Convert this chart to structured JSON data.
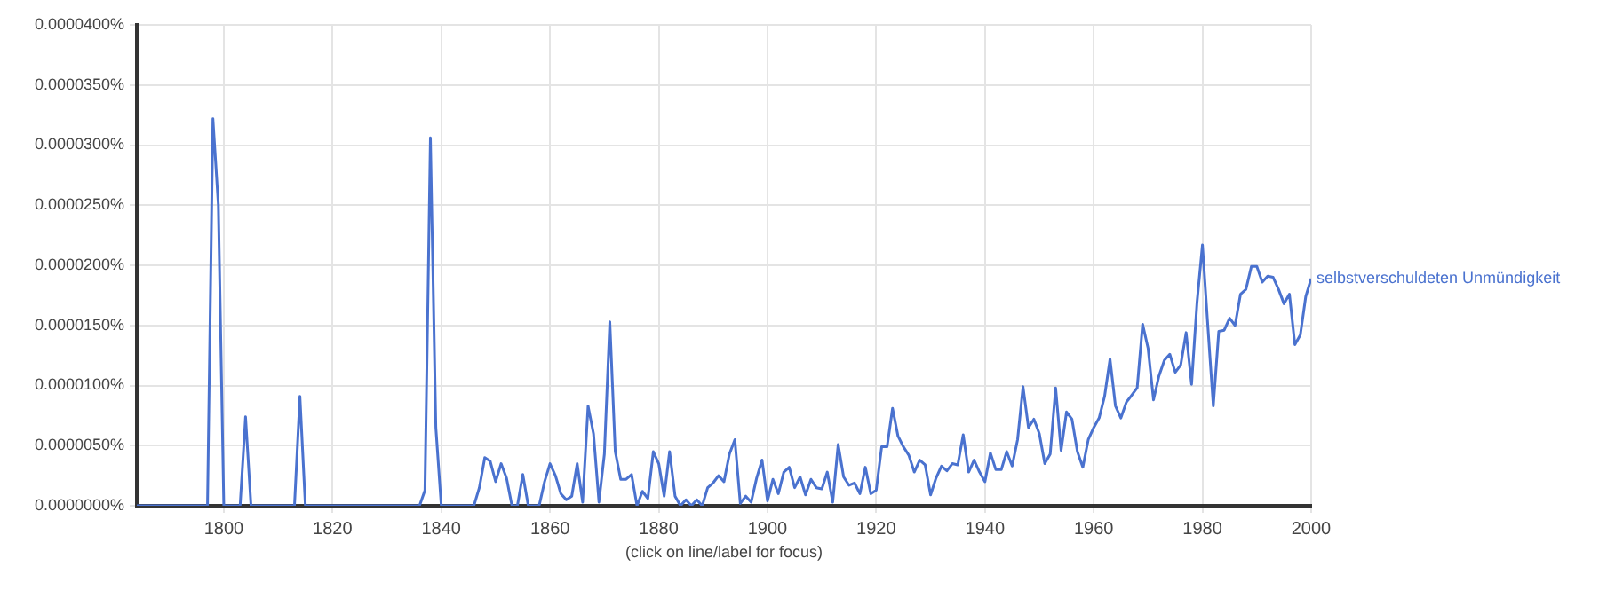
{
  "chart_data": {
    "type": "line",
    "xlabel": "(click on line/label for focus)",
    "xlim": [
      1784,
      2000
    ],
    "xticks": [
      1800,
      1820,
      1840,
      1860,
      1880,
      1900,
      1920,
      1940,
      1960,
      1980,
      2000
    ],
    "ylim": [
      0,
      4e-05
    ],
    "yticks": [
      {
        "value": 0,
        "label": "0.0000000%"
      },
      {
        "value": 5e-06,
        "label": "0.0000050%"
      },
      {
        "value": 1e-05,
        "label": "0.0000100%"
      },
      {
        "value": 1.5e-05,
        "label": "0.0000150%"
      },
      {
        "value": 2e-05,
        "label": "0.0000200%"
      },
      {
        "value": 2.5e-05,
        "label": "0.0000250%"
      },
      {
        "value": 3e-05,
        "label": "0.0000300%"
      },
      {
        "value": 3.5e-05,
        "label": "0.0000350%"
      },
      {
        "value": 4e-05,
        "label": "0.0000400%"
      }
    ],
    "grid": true,
    "legend": false,
    "marker": "none",
    "line_style": "solid",
    "x": [
      1784,
      1785,
      1786,
      1787,
      1788,
      1789,
      1790,
      1791,
      1792,
      1793,
      1794,
      1795,
      1796,
      1797,
      1798,
      1799,
      1800,
      1801,
      1802,
      1803,
      1804,
      1805,
      1806,
      1807,
      1808,
      1809,
      1810,
      1811,
      1812,
      1813,
      1814,
      1815,
      1816,
      1817,
      1818,
      1819,
      1820,
      1821,
      1822,
      1823,
      1824,
      1825,
      1826,
      1827,
      1828,
      1829,
      1830,
      1831,
      1832,
      1833,
      1834,
      1835,
      1836,
      1837,
      1838,
      1839,
      1840,
      1841,
      1842,
      1843,
      1844,
      1845,
      1846,
      1847,
      1848,
      1849,
      1850,
      1851,
      1852,
      1853,
      1854,
      1855,
      1856,
      1857,
      1858,
      1859,
      1860,
      1861,
      1862,
      1863,
      1864,
      1865,
      1866,
      1867,
      1868,
      1869,
      1870,
      1871,
      1872,
      1873,
      1874,
      1875,
      1876,
      1877,
      1878,
      1879,
      1880,
      1881,
      1882,
      1883,
      1884,
      1885,
      1886,
      1887,
      1888,
      1889,
      1890,
      1891,
      1892,
      1893,
      1894,
      1895,
      1896,
      1897,
      1898,
      1899,
      1900,
      1901,
      1902,
      1903,
      1904,
      1905,
      1906,
      1907,
      1908,
      1909,
      1910,
      1911,
      1912,
      1913,
      1914,
      1915,
      1916,
      1917,
      1918,
      1919,
      1920,
      1921,
      1922,
      1923,
      1924,
      1925,
      1926,
      1927,
      1928,
      1929,
      1930,
      1931,
      1932,
      1933,
      1934,
      1935,
      1936,
      1937,
      1938,
      1939,
      1940,
      1941,
      1942,
      1943,
      1944,
      1945,
      1946,
      1947,
      1948,
      1949,
      1950,
      1951,
      1952,
      1953,
      1954,
      1955,
      1956,
      1957,
      1958,
      1959,
      1960,
      1961,
      1962,
      1963,
      1964,
      1965,
      1966,
      1967,
      1968,
      1969,
      1970,
      1971,
      1972,
      1973,
      1974,
      1975,
      1976,
      1977,
      1978,
      1979,
      1980,
      1981,
      1982,
      1983,
      1984,
      1985,
      1986,
      1987,
      1988,
      1989,
      1990,
      1991,
      1992,
      1993,
      1994,
      1995,
      1996,
      1997,
      1998,
      1999,
      2000
    ],
    "series": [
      {
        "name": "selbstverschuldeten Unmündigkeit",
        "color": "#4a72cf",
        "values": [
          0,
          0,
          0,
          0,
          0,
          0,
          0,
          0,
          0,
          0,
          0,
          0,
          0,
          0,
          3.22e-05,
          2.5e-05,
          0,
          0,
          0,
          0,
          7.4e-06,
          0,
          0,
          0,
          0,
          0,
          0,
          0,
          0,
          0,
          9.1e-06,
          0,
          0,
          0,
          0,
          0,
          0,
          0,
          0,
          0,
          0,
          0,
          0,
          0,
          0,
          0,
          0,
          0,
          0,
          0,
          0,
          0,
          0,
          1.3e-06,
          3.06e-05,
          6.5e-06,
          0,
          0,
          0,
          0,
          0,
          0,
          0,
          1.5e-06,
          4e-06,
          3.7e-06,
          2e-06,
          3.5e-06,
          2.3e-06,
          0,
          0,
          2.6e-06,
          0,
          0,
          0,
          2e-06,
          3.5e-06,
          2.5e-06,
          1e-06,
          5e-07,
          8e-07,
          3.5e-06,
          3e-07,
          8.3e-06,
          6e-06,
          3e-07,
          4.3e-06,
          1.53e-05,
          4.5e-06,
          2.2e-06,
          2.2e-06,
          2.6e-06,
          0,
          1.2e-06,
          6e-07,
          4.5e-06,
          3.5e-06,
          8e-07,
          4.5e-06,
          8e-07,
          0,
          5e-07,
          0,
          5e-07,
          0,
          1.5e-06,
          1.9e-06,
          2.5e-06,
          2e-06,
          4.3e-06,
          5.5e-06,
          2e-07,
          8e-07,
          3e-07,
          2.3e-06,
          3.8e-06,
          4e-07,
          2.2e-06,
          1e-06,
          2.8e-06,
          3.2e-06,
          1.5e-06,
          2.4e-06,
          9e-07,
          2.2e-06,
          1.5e-06,
          1.4e-06,
          2.8e-06,
          3e-07,
          5.1e-06,
          2.4e-06,
          1.7e-06,
          1.9e-06,
          1e-06,
          3.2e-06,
          1e-06,
          1.3e-06,
          4.9e-06,
          4.9e-06,
          8.1e-06,
          5.8e-06,
          4.9e-06,
          4.2e-06,
          2.8e-06,
          3.8e-06,
          3.4e-06,
          9e-07,
          2.3e-06,
          3.3e-06,
          2.9e-06,
          3.5e-06,
          3.4e-06,
          5.9e-06,
          2.8e-06,
          3.8e-06,
          2.8e-06,
          2e-06,
          4.4e-06,
          3e-06,
          3e-06,
          4.5e-06,
          3.3e-06,
          5.5e-06,
          9.9e-06,
          6.5e-06,
          7.2e-06,
          6e-06,
          3.5e-06,
          4.3e-06,
          9.8e-06,
          4.6e-06,
          7.8e-06,
          7.2e-06,
          4.5e-06,
          3.2e-06,
          5.5e-06,
          6.5e-06,
          7.3e-06,
          9.1e-06,
          1.22e-05,
          8.3e-06,
          7.3e-06,
          8.6e-06,
          9.2e-06,
          9.8e-06,
          1.51e-05,
          1.31e-05,
          8.8e-06,
          1.08e-05,
          1.21e-05,
          1.26e-05,
          1.11e-05,
          1.17e-05,
          1.44e-05,
          1.01e-05,
          1.69e-05,
          2.17e-05,
          1.49e-05,
          8.3e-06,
          1.45e-05,
          1.46e-05,
          1.56e-05,
          1.5e-05,
          1.76e-05,
          1.8e-05,
          1.99e-05,
          1.99e-05,
          1.86e-05,
          1.91e-05,
          1.9e-05,
          1.8e-05,
          1.68e-05,
          1.76e-05,
          1.34e-05,
          1.42e-05,
          1.74e-05,
          1.89e-05
        ]
      }
    ]
  }
}
